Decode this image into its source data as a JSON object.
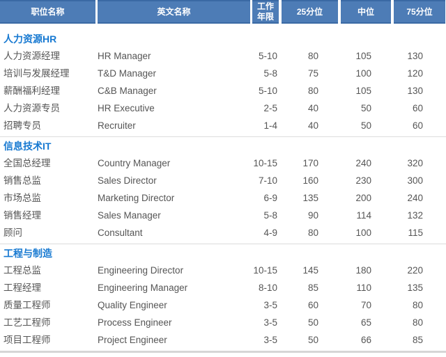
{
  "table": {
    "headers": [
      "职位名称",
      "英文名称",
      "工作年限",
      "25分位",
      "中位",
      "75分位"
    ],
    "column_keys": [
      "position_cn",
      "position_en",
      "years",
      "p25",
      "median",
      "p75"
    ],
    "sections": [
      {
        "title": "人力资源HR",
        "rows": [
          {
            "position_cn": "人力资源经理",
            "position_en": "HR Manager",
            "years": "5-10",
            "p25": "80",
            "median": "105",
            "p75": "130"
          },
          {
            "position_cn": "培训与发展经理",
            "position_en": "T&D Manager",
            "years": "5-8",
            "p25": "75",
            "median": "100",
            "p75": "120"
          },
          {
            "position_cn": "薪酬福利经理",
            "position_en": "C&B Manager",
            "years": "5-10",
            "p25": "80",
            "median": "105",
            "p75": "130"
          },
          {
            "position_cn": "人力资源专员",
            "position_en": "HR Executive",
            "years": "2-5",
            "p25": "40",
            "median": "50",
            "p75": "60"
          },
          {
            "position_cn": "招聘专员",
            "position_en": "Recruiter",
            "years": "1-4",
            "p25": "40",
            "median": "50",
            "p75": "60"
          }
        ]
      },
      {
        "title": "信息技术IT",
        "rows": [
          {
            "position_cn": "全国总经理",
            "position_en": "Country Manager",
            "years": "10-15",
            "p25": "170",
            "median": "240",
            "p75": "320"
          },
          {
            "position_cn": "销售总监",
            "position_en": "Sales Director",
            "years": "7-10",
            "p25": "160",
            "median": "230",
            "p75": "300"
          },
          {
            "position_cn": "市场总监",
            "position_en": "Marketing Director",
            "years": "6-9",
            "p25": "135",
            "median": "200",
            "p75": "240"
          },
          {
            "position_cn": "销售经理",
            "position_en": "Sales Manager",
            "years": "5-8",
            "p25": "90",
            "median": "114",
            "p75": "132"
          },
          {
            "position_cn": "顾问",
            "position_en": "Consultant",
            "years": "4-9",
            "p25": "80",
            "median": "100",
            "p75": "115"
          }
        ]
      },
      {
        "title": "工程与制造",
        "rows": [
          {
            "position_cn": "工程总监",
            "position_en": "Engineering Director",
            "years": "10-15",
            "p25": "145",
            "median": "180",
            "p75": "220"
          },
          {
            "position_cn": "工程经理",
            "position_en": "Engineering Manager",
            "years": "8-10",
            "p25": "85",
            "median": "110",
            "p75": "135"
          },
          {
            "position_cn": "质量工程师",
            "position_en": "Quality Engineer",
            "years": "3-5",
            "p25": "60",
            "median": "70",
            "p75": "80"
          },
          {
            "position_cn": "工艺工程师",
            "position_en": "Process Engineer",
            "years": "3-5",
            "p25": "50",
            "median": "65",
            "p75": "80"
          },
          {
            "position_cn": "项目工程师",
            "position_en": "Project Engineer",
            "years": "3-5",
            "p25": "50",
            "median": "66",
            "p75": "85"
          }
        ]
      }
    ]
  },
  "colors": {
    "header_bg": "#4d7cb6",
    "header_border": "#3a69a4",
    "header_text": "#ffffff",
    "section_title_text": "#1779d1",
    "body_text": "#555555",
    "divider": "#dcdcdc"
  }
}
